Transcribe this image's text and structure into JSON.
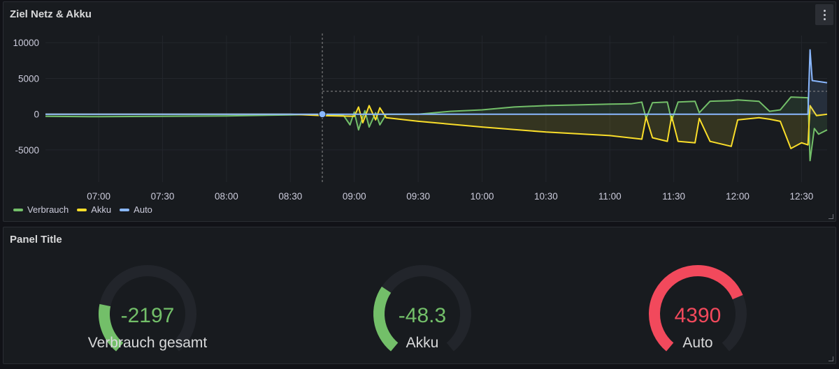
{
  "top_panel": {
    "title": "Ziel Netz & Akku",
    "menu_icon": "kebab-vertical-icon"
  },
  "chart_data": {
    "type": "line",
    "title": "Ziel Netz & Akku",
    "xlabel": "",
    "ylabel": "",
    "x_ticks": [
      "07:00",
      "07:30",
      "08:00",
      "08:30",
      "09:00",
      "09:30",
      "10:00",
      "10:30",
      "11:00",
      "11:30",
      "12:00",
      "12:30"
    ],
    "y_ticks": [
      10000,
      5000,
      0,
      -5000
    ],
    "ylim": [
      -9500,
      11000
    ],
    "xlim_minutes": [
      395,
      762
    ],
    "grid": true,
    "legend_position": "bottom-left",
    "crosshair_x": "08:45",
    "crosshair_y": 3200,
    "series": [
      {
        "name": "Verbrauch",
        "color": "#73bf69",
        "points": [
          [
            "06:35",
            -300
          ],
          [
            "07:00",
            -350
          ],
          [
            "07:30",
            -300
          ],
          [
            "08:00",
            -250
          ],
          [
            "08:30",
            -100
          ],
          [
            "08:45",
            0
          ],
          [
            "08:55",
            -200
          ],
          [
            "08:58",
            -1500
          ],
          [
            "09:00",
            300
          ],
          [
            "09:02",
            -2200
          ],
          [
            "09:05",
            500
          ],
          [
            "09:07",
            -1800
          ],
          [
            "09:10",
            200
          ],
          [
            "09:12",
            -1500
          ],
          [
            "09:15",
            0
          ],
          [
            "09:30",
            0
          ],
          [
            "09:45",
            400
          ],
          [
            "10:00",
            600
          ],
          [
            "10:15",
            1000
          ],
          [
            "10:30",
            1200
          ],
          [
            "10:45",
            1300
          ],
          [
            "11:00",
            1400
          ],
          [
            "11:10",
            1450
          ],
          [
            "11:15",
            1700
          ],
          [
            "11:17",
            -600
          ],
          [
            "11:20",
            1600
          ],
          [
            "11:27",
            1700
          ],
          [
            "11:29",
            -900
          ],
          [
            "11:32",
            1700
          ],
          [
            "11:40",
            1800
          ],
          [
            "11:42",
            200
          ],
          [
            "11:47",
            1800
          ],
          [
            "11:57",
            1900
          ],
          [
            "12:00",
            2000
          ],
          [
            "12:10",
            1800
          ],
          [
            "12:15",
            400
          ],
          [
            "12:20",
            600
          ],
          [
            "12:25",
            2400
          ],
          [
            "12:33",
            2300
          ],
          [
            "12:34",
            -6500
          ],
          [
            "12:36",
            -2000
          ],
          [
            "12:38",
            -2800
          ],
          [
            "12:42",
            -2200
          ]
        ]
      },
      {
        "name": "Akku",
        "color": "#fade2a",
        "points": [
          [
            "06:35",
            0
          ],
          [
            "08:30",
            0
          ],
          [
            "08:45",
            -200
          ],
          [
            "09:00",
            -300
          ],
          [
            "09:02",
            1000
          ],
          [
            "09:04",
            -1200
          ],
          [
            "09:07",
            1200
          ],
          [
            "09:10",
            -800
          ],
          [
            "09:12",
            900
          ],
          [
            "09:15",
            -500
          ],
          [
            "09:30",
            -1000
          ],
          [
            "10:00",
            -1800
          ],
          [
            "10:30",
            -2500
          ],
          [
            "11:00",
            -3000
          ],
          [
            "11:15",
            -3500
          ],
          [
            "11:17",
            -400
          ],
          [
            "11:20",
            -3300
          ],
          [
            "11:27",
            -3800
          ],
          [
            "11:29",
            -300
          ],
          [
            "11:32",
            -3800
          ],
          [
            "11:40",
            -4000
          ],
          [
            "11:42",
            -600
          ],
          [
            "11:47",
            -3800
          ],
          [
            "11:57",
            -4500
          ],
          [
            "12:00",
            -800
          ],
          [
            "12:10",
            -500
          ],
          [
            "12:15",
            -700
          ],
          [
            "12:20",
            -1000
          ],
          [
            "12:25",
            -4800
          ],
          [
            "12:30",
            -4000
          ],
          [
            "12:33",
            -4300
          ],
          [
            "12:34",
            1200
          ],
          [
            "12:37",
            -200
          ],
          [
            "12:42",
            0
          ]
        ]
      },
      {
        "name": "Auto",
        "color": "#8ab8ff",
        "points": [
          [
            "06:35",
            0
          ],
          [
            "12:33",
            0
          ],
          [
            "12:34",
            9000
          ],
          [
            "12:35",
            4700
          ],
          [
            "12:42",
            4400
          ]
        ]
      }
    ]
  },
  "bottom_panel": {
    "title": "Panel Title",
    "gauges": [
      {
        "value": "-2197",
        "label": "Verbrauch gesamt",
        "color": "#73bf69",
        "fraction": 0.22
      },
      {
        "value": "-48.3",
        "label": "Akku",
        "color": "#73bf69",
        "fraction": 0.3
      },
      {
        "value": "4390",
        "label": "Auto",
        "color": "#f2495c",
        "fraction": 0.74
      }
    ],
    "gauge_track_color": "#22252b"
  }
}
